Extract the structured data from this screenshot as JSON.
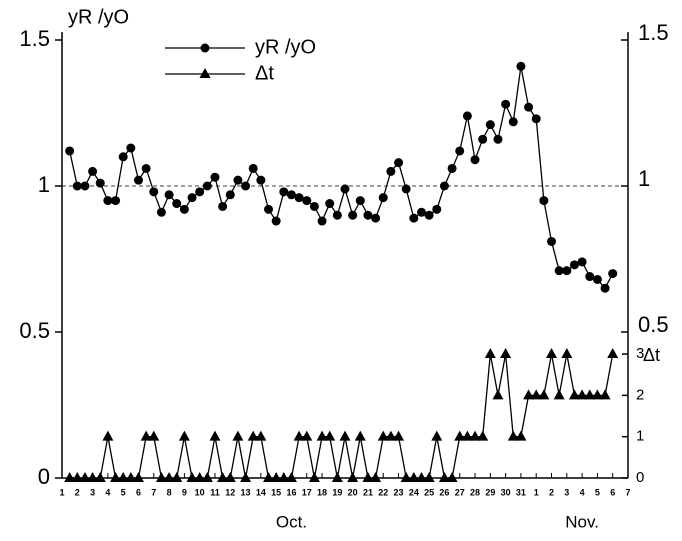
{
  "chart_data": {
    "type": "line",
    "y_label": "yR /yO",
    "y2_label": "Δt",
    "x": [
      1.5,
      2,
      2.5,
      3,
      3.5,
      4,
      4.5,
      5,
      5.5,
      6,
      6.5,
      7,
      7.5,
      8,
      8.5,
      9,
      9.5,
      10,
      10.5,
      11,
      11.5,
      12,
      12.5,
      13,
      13.5,
      14,
      14.5,
      15,
      15.5,
      16,
      16.5,
      17,
      17.5,
      18,
      18.5,
      19,
      19.5,
      20,
      20.5,
      21,
      21.5,
      22,
      22.5,
      23,
      23.5,
      24,
      24.5,
      25,
      25.5,
      26,
      26.5,
      27,
      27.5,
      28,
      28.5,
      29,
      29.5,
      30,
      30.5,
      31,
      31.5,
      32,
      32.5,
      33,
      33.5,
      34,
      34.5,
      35,
      35.5,
      36,
      36.5,
      37
    ],
    "series": [
      {
        "name": "yR /yO",
        "color": "#000000",
        "marker": "circle",
        "values": [
          1.12,
          1.0,
          1.0,
          1.05,
          1.01,
          0.95,
          0.95,
          1.1,
          1.13,
          1.02,
          1.06,
          0.98,
          0.91,
          0.97,
          0.94,
          0.92,
          0.96,
          0.98,
          1.0,
          1.03,
          0.93,
          0.97,
          1.02,
          1.0,
          1.06,
          1.02,
          0.92,
          0.88,
          0.98,
          0.97,
          0.96,
          0.95,
          0.93,
          0.88,
          0.94,
          0.9,
          0.99,
          0.9,
          0.95,
          0.9,
          0.89,
          0.96,
          1.05,
          1.08,
          0.99,
          0.89,
          0.91,
          0.9,
          0.92,
          1.0,
          1.06,
          1.12,
          1.24,
          1.09,
          1.16,
          1.21,
          1.16,
          1.28,
          1.22,
          1.41,
          1.27,
          1.23,
          0.95,
          0.81,
          0.71,
          0.71,
          0.73,
          0.74,
          0.69,
          0.68,
          0.65,
          0.7
        ]
      },
      {
        "name": "Δt",
        "color": "#000000",
        "marker": "triangle",
        "axis": "y2",
        "values": [
          0,
          0,
          0,
          0,
          0,
          1,
          0,
          0,
          0,
          0,
          1,
          1,
          0,
          0,
          0,
          1,
          0,
          0,
          0,
          1,
          0,
          0,
          1,
          0,
          1,
          1,
          0,
          0,
          0,
          0,
          1,
          1,
          0,
          1,
          1,
          0,
          1,
          0,
          1,
          0,
          0,
          1,
          1,
          1,
          0,
          0,
          0,
          0,
          1,
          0,
          0,
          1,
          1,
          1,
          1,
          3,
          2,
          3,
          1,
          1,
          2,
          2,
          2,
          3,
          2,
          3,
          2,
          2,
          2,
          2,
          2,
          3
        ]
      }
    ],
    "xlim": [
      1,
      38
    ],
    "xticks": [
      1,
      2,
      3,
      4,
      5,
      6,
      7,
      8,
      9,
      10,
      11,
      12,
      13,
      14,
      15,
      16,
      17,
      18,
      19,
      20,
      21,
      22,
      23,
      24,
      25,
      26,
      27,
      28,
      29,
      30,
      31,
      {
        "value": 32,
        "label": "1"
      },
      {
        "value": 33,
        "label": "2"
      },
      {
        "value": 34,
        "label": "3"
      },
      {
        "value": 35,
        "label": "4"
      },
      {
        "value": 36,
        "label": "5"
      },
      {
        "value": 37,
        "label": "6"
      },
      {
        "value": 38,
        "label": "7"
      }
    ],
    "x_groups": [
      {
        "label": "Oct.",
        "start": 1,
        "end": 31
      },
      {
        "label": "Nov.",
        "start": 32,
        "end": 38
      }
    ],
    "ylim": [
      0,
      1.5
    ],
    "yticks": [
      0,
      0.5,
      1,
      1.5
    ],
    "y2lim": [
      0,
      10.6
    ],
    "y2ticks": [
      0,
      1,
      2,
      3
    ],
    "hline": 1,
    "legend": "top"
  }
}
